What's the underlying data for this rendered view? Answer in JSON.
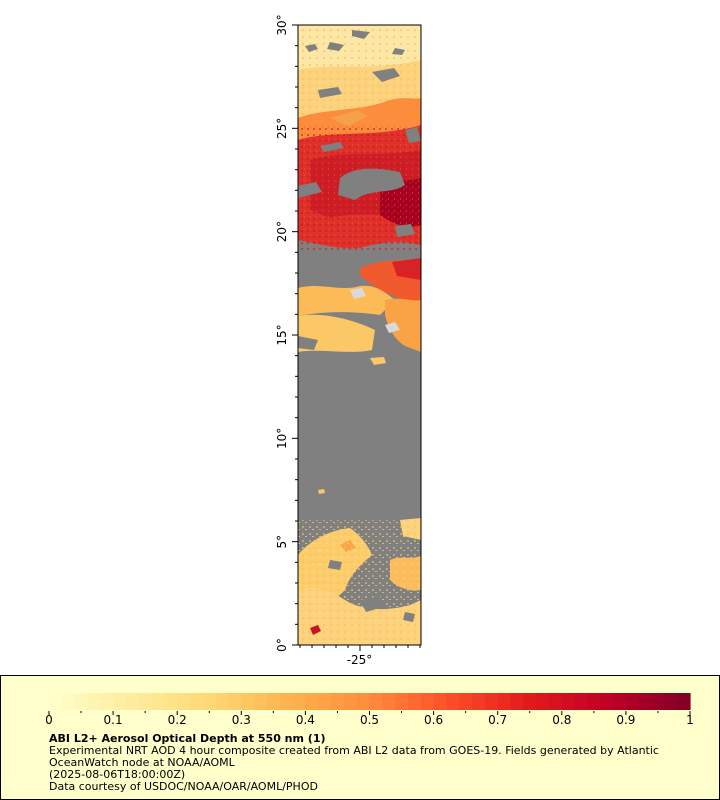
{
  "map": {
    "lat_range": [
      0,
      30
    ],
    "lon_center": -25,
    "lat_ticks": [
      "0°",
      "5°",
      "10°",
      "15°",
      "20°",
      "25°",
      "30°"
    ],
    "lon_ticks": [
      "-25°"
    ],
    "no_data_color": "#808080",
    "land_mask_color": "#b0b0b0"
  },
  "colorbar": {
    "min": 0,
    "max": 1,
    "tick_labels": [
      "0",
      "0.1",
      "0.2",
      "0.3",
      "0.4",
      "0.5",
      "0.6",
      "0.7",
      "0.8",
      "0.9",
      "1"
    ],
    "colors": [
      "#ffffcc",
      "#ffeda0",
      "#fed976",
      "#feb24c",
      "#fd8d3c",
      "#fc4e2a",
      "#e31a1c",
      "#bd0026",
      "#800026"
    ]
  },
  "legend": {
    "title": "ABI L2+ Aerosol Optical Depth at 550 nm (1)",
    "description": "Experimental NRT AOD 4 hour composite created from ABI L2 data from GOES-19. Fields generated by Atlantic OceanWatch node at NOAA/AOML",
    "date": "(2025-08-06T18:00:00Z)",
    "credit": "Data courtesy of USDOC/NOAA/OAR/AOML/PHOD"
  }
}
